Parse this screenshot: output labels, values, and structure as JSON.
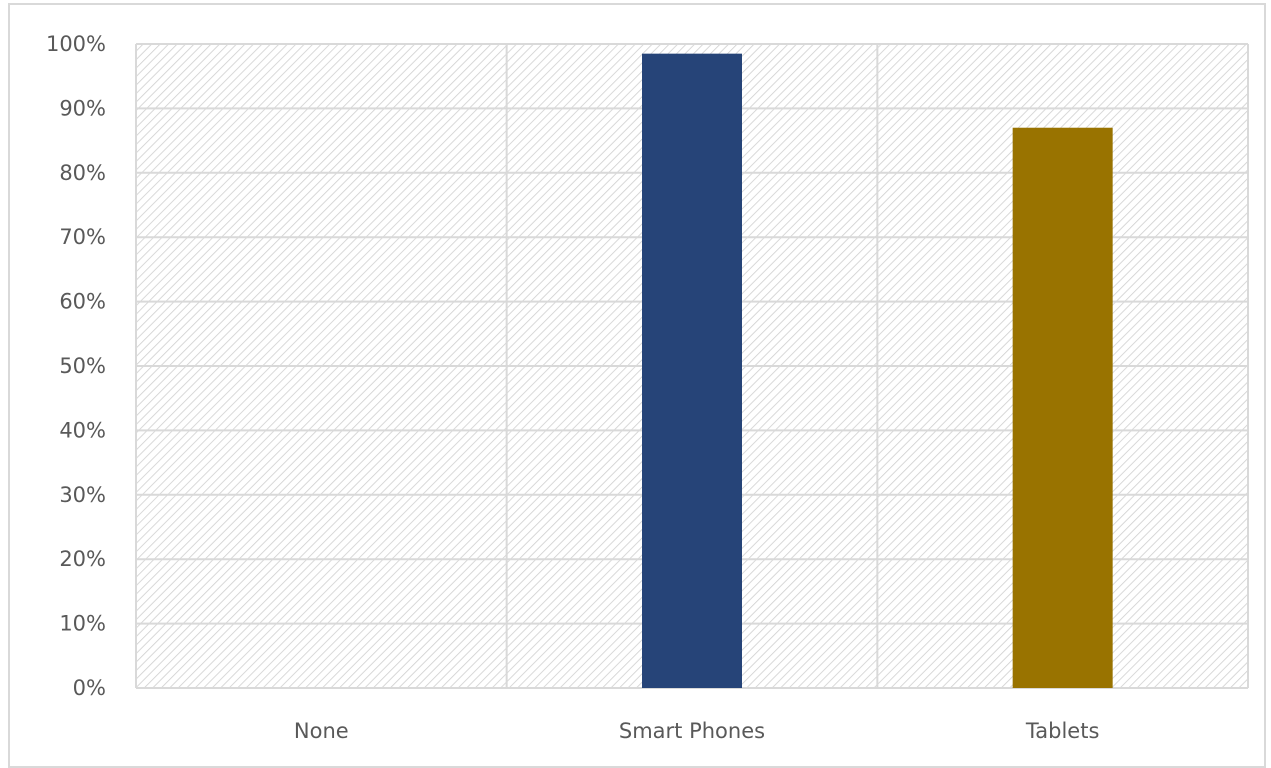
{
  "chart_data": {
    "type": "bar",
    "title": "",
    "xlabel": "",
    "ylabel": "",
    "categories": [
      "None",
      "Smart Phones",
      "Tablets"
    ],
    "values": [
      0,
      98.5,
      87
    ],
    "bar_colors": [
      "#264478",
      "#264478",
      "#997300"
    ],
    "ylim": [
      0,
      100
    ],
    "y_ticks": [
      0,
      10,
      20,
      30,
      40,
      50,
      60,
      70,
      80,
      90,
      100
    ],
    "y_tick_labels": [
      "0%",
      "10%",
      "20%",
      "30%",
      "40%",
      "50%",
      "60%",
      "70%",
      "80%",
      "90%",
      "100%"
    ],
    "grid": true,
    "legend": "none",
    "plot_background": "diagonal hatch",
    "colors": {
      "grid": "#d9d9d9",
      "hatch": "#d0d0d0",
      "tick_text": "#595959"
    }
  }
}
